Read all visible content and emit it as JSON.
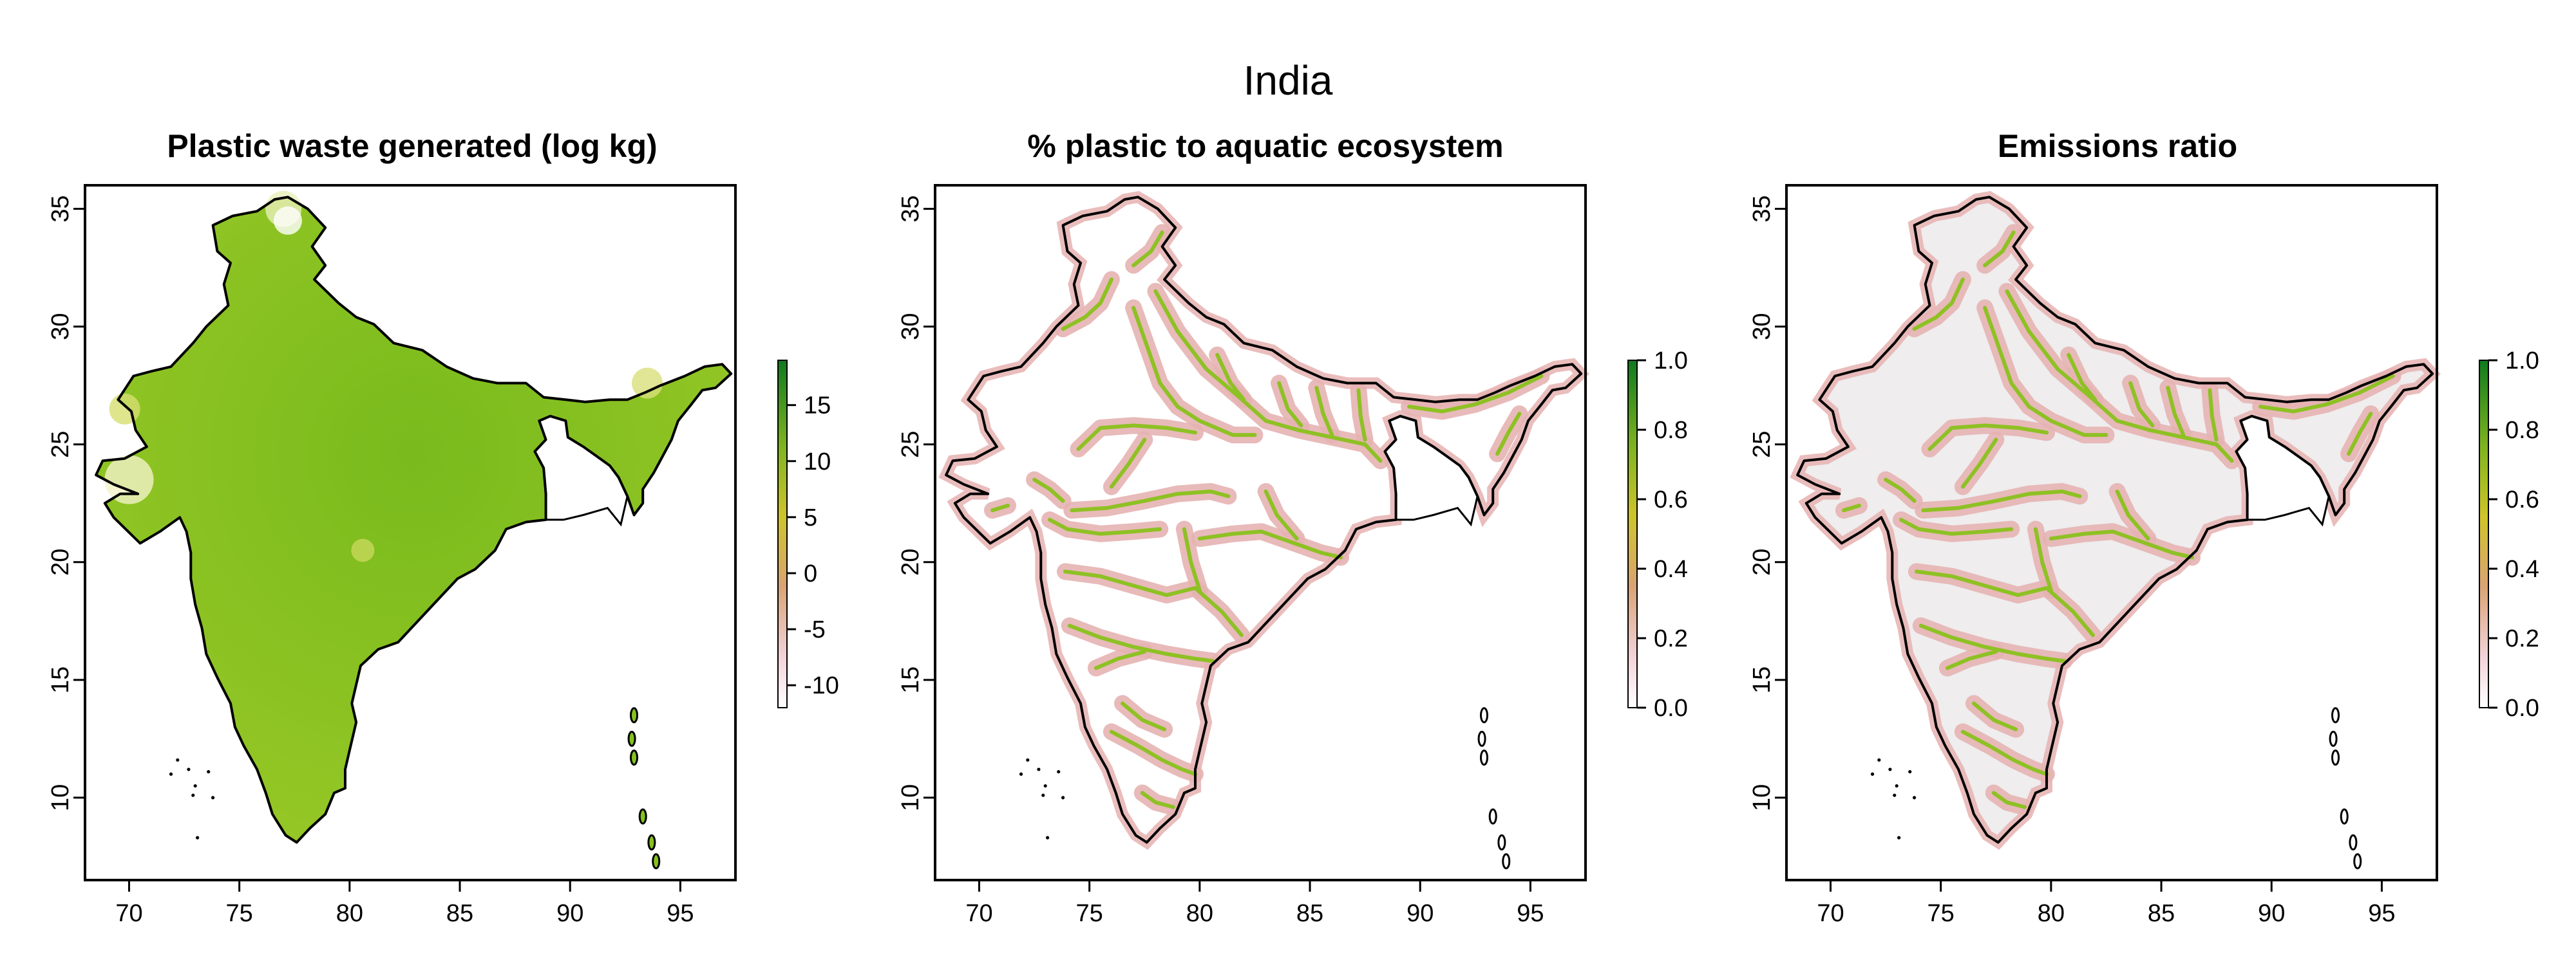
{
  "figure": {
    "title": "India"
  },
  "colors": {
    "low": "#f6e3e6",
    "midlow": "#d9a373",
    "mid": "#c9c326",
    "high": "#6fa81a",
    "top": "#0f7a1e",
    "land_fill_panel1": "#86c21f",
    "land_fill_panel3": "#efedee",
    "river": "#8ec124",
    "river_halo": "#e6b2b2",
    "outline": "#000000"
  },
  "panels": [
    {
      "title": "Plastic waste generated (log kg)",
      "legend_ticks": [
        "15",
        "10",
        "5",
        "0",
        "-5",
        "-10"
      ],
      "legend_range": [
        -12,
        19
      ]
    },
    {
      "title": "% plastic to aquatic ecosystem",
      "legend_ticks": [
        "1.0",
        "0.8",
        "0.6",
        "0.4",
        "0.2",
        "0.0"
      ],
      "legend_range": [
        0,
        1
      ]
    },
    {
      "title": "Emissions ratio",
      "legend_ticks": [
        "1.0",
        "0.8",
        "0.6",
        "0.4",
        "0.2",
        "0.0"
      ],
      "legend_range": [
        0,
        1
      ]
    }
  ],
  "axes": {
    "x_ticks": [
      "70",
      "75",
      "80",
      "85",
      "90",
      "95"
    ],
    "x_values": [
      70,
      75,
      80,
      85,
      90,
      95
    ],
    "y_ticks": [
      "35",
      "30",
      "25",
      "20",
      "15",
      "10"
    ],
    "y_values": [
      35,
      30,
      25,
      20,
      15,
      10
    ],
    "xlim": [
      68,
      97.5
    ],
    "ylim": [
      6.5,
      36
    ]
  }
}
